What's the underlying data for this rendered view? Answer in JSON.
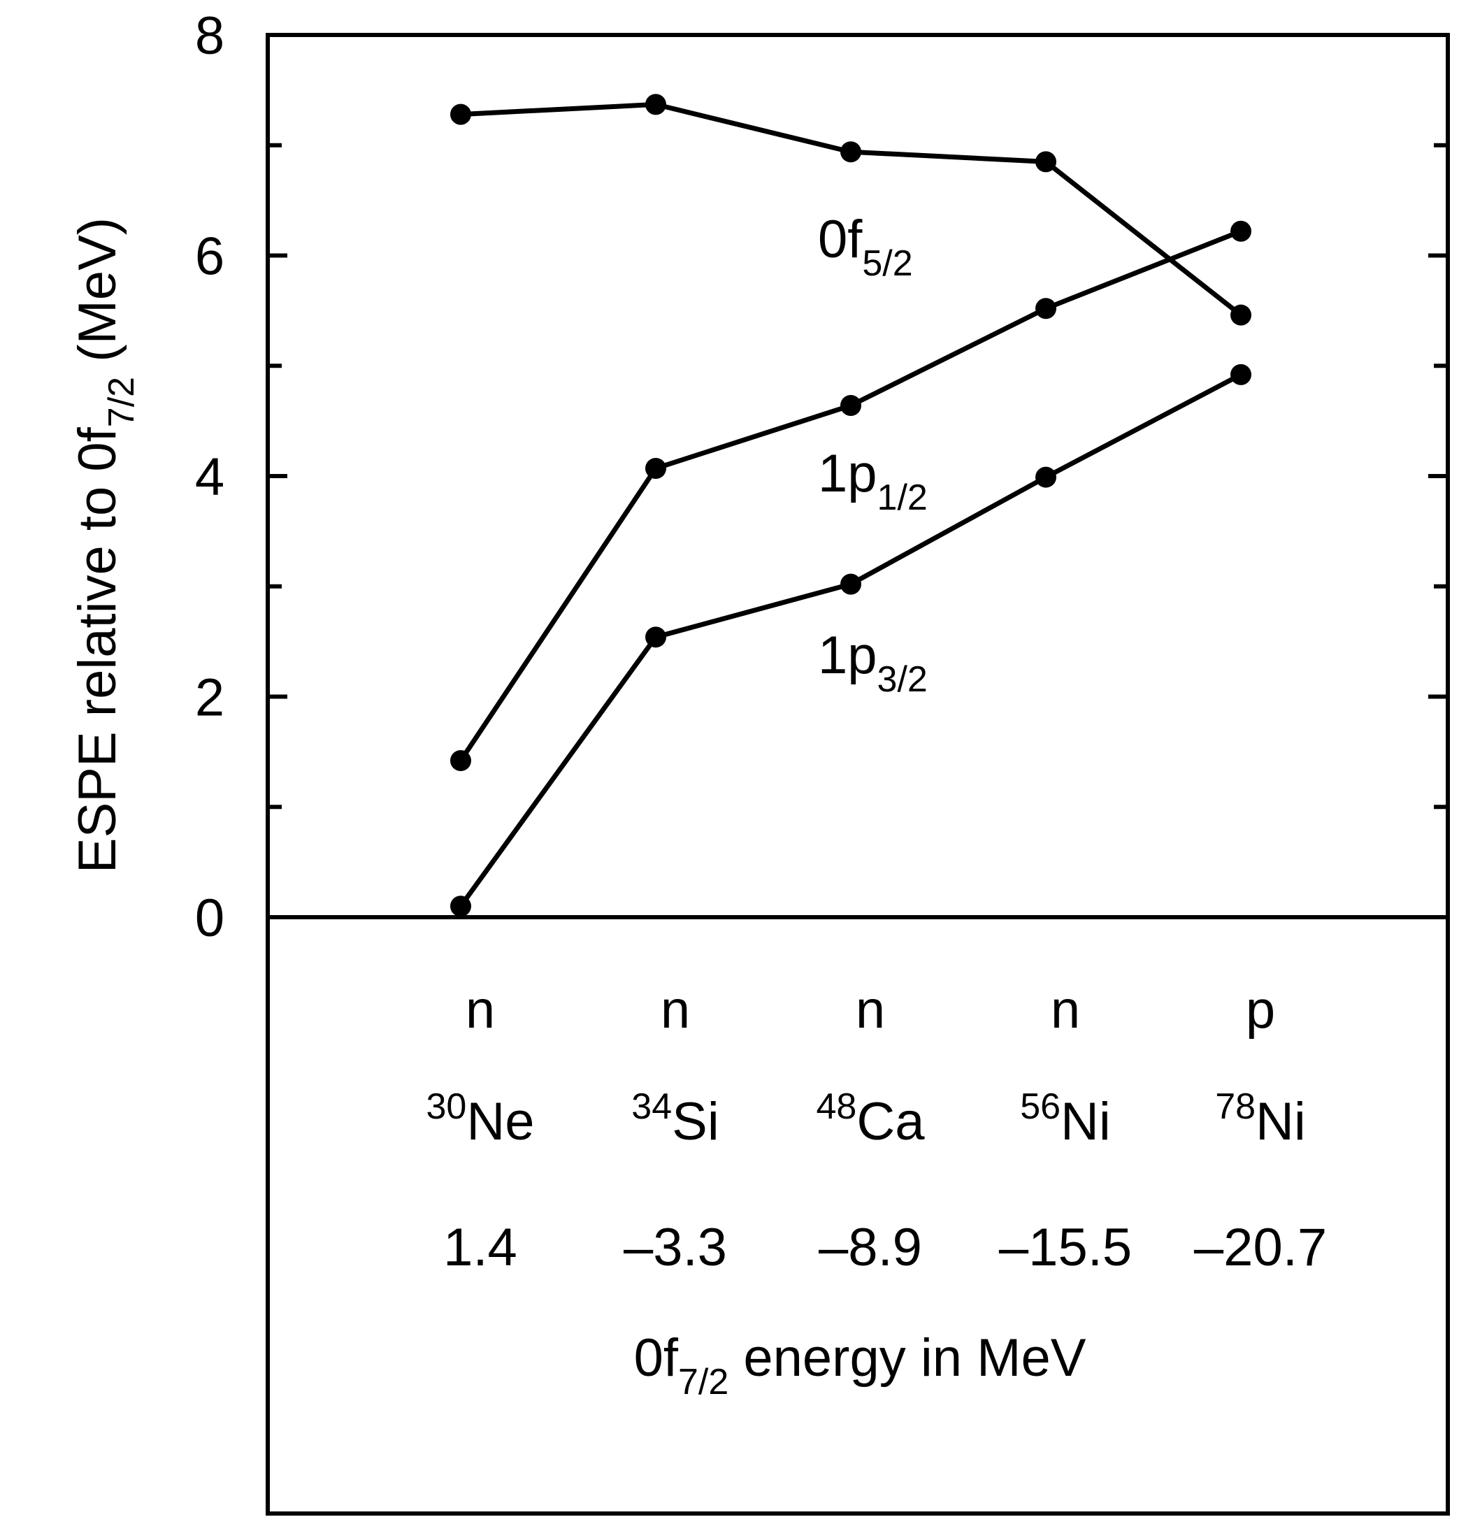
{
  "chart_data": {
    "type": "line",
    "ylabel": {
      "prefix": "ESPE relative to 0f",
      "sub": "7/2",
      "suffix": " (MeV)"
    },
    "ylim": [
      0,
      8
    ],
    "yticks_major": [
      0,
      2,
      4,
      6,
      8
    ],
    "yticks_minor": [
      1,
      3,
      5,
      7
    ],
    "grid": false,
    "categories": [
      {
        "nucleon": "n",
        "mass": "30",
        "element": "Ne",
        "energy": "1.4"
      },
      {
        "nucleon": "n",
        "mass": "34",
        "element": "Si",
        "energy": "–3.3"
      },
      {
        "nucleon": "n",
        "mass": "48",
        "element": "Ca",
        "energy": "–8.9"
      },
      {
        "nucleon": "n",
        "mass": "56",
        "element": "Ni",
        "energy": "–15.5"
      },
      {
        "nucleon": "p",
        "mass": "78",
        "element": "Ni",
        "energy": "–20.7"
      }
    ],
    "xlabel": {
      "prefix": "0f",
      "sub": "7/2",
      "suffix": " energy in MeV"
    },
    "series": [
      {
        "key": "0f52",
        "label_main": "0f",
        "label_sub": "5/2",
        "values": [
          7.28,
          7.37,
          6.94,
          6.85,
          5.46
        ]
      },
      {
        "key": "1p12",
        "label_main": "1p",
        "label_sub": "1/2",
        "values": [
          1.42,
          4.07,
          4.64,
          5.52,
          6.22
        ]
      },
      {
        "key": "1p32",
        "label_main": "1p",
        "label_sub": "3/2",
        "values": [
          0.1,
          2.54,
          3.02,
          3.99,
          4.92
        ]
      }
    ]
  }
}
